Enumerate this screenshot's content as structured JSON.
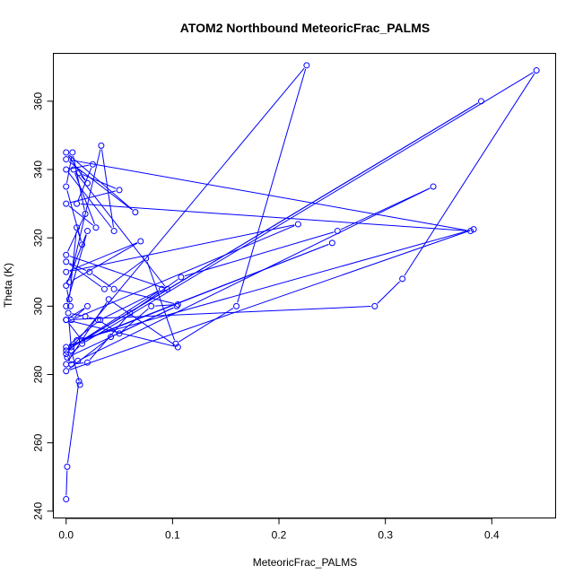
{
  "chart_data": {
    "type": "line",
    "title": "ATOM2 Northbound MeteoricFrac_PALMS",
    "xlabel": "MeteoricFrac_PALMS",
    "ylabel": "Theta (K)",
    "xlim": [
      -0.012,
      0.46
    ],
    "ylim": [
      238,
      374
    ],
    "x_ticks": [
      0.0,
      0.1,
      0.2,
      0.3,
      0.4
    ],
    "x_tick_labels": [
      "0.0",
      "0.1",
      "0.2",
      "0.3",
      "0.4"
    ],
    "y_ticks": [
      240,
      260,
      280,
      300,
      320,
      340,
      360
    ],
    "y_tick_labels": [
      "240",
      "260",
      "280",
      "300",
      "320",
      "340",
      "360"
    ],
    "grid": false,
    "legend": "none",
    "series_color": "#0000ff",
    "marker": "open-circle",
    "series": [
      {
        "x": [
          0.0,
          0.001,
          0.012,
          0.013,
          0.005,
          0.002,
          0.018,
          0.03,
          0.05,
          0.08,
          0.105,
          0.045,
          0.022,
          0.0,
          0.036,
          0.075,
          0.103,
          0.16,
          0.226,
          0.0,
          0.005,
          0.02,
          0.06,
          0.108,
          0.255,
          0.345,
          0.011,
          0.0,
          0.04,
          0.105,
          0.0,
          0.015,
          0.25,
          0.0,
          0.032,
          0.09,
          0.005,
          0.39,
          0.0,
          0.01,
          0.383,
          0.0,
          0.042,
          0.104,
          0.001,
          0.015,
          0.442,
          0.316,
          0.29,
          0.0,
          0.02,
          0.005,
          0.218,
          0.0,
          0.07,
          0.003,
          0.033,
          0.045,
          0.0,
          0.025,
          0.01,
          0.38,
          0.0,
          0.065,
          0.0,
          0.02,
          0.012,
          0.05,
          0.0,
          0.028,
          0.007,
          0.095,
          0.0,
          0.018,
          0.006,
          0.0,
          0.015,
          0.01,
          0.003,
          0.0,
          0.02,
          0.0,
          0.004
        ],
        "y": [
          243.5,
          253,
          278,
          277,
          287,
          298,
          297,
          296,
          292,
          300,
          300.5,
          305,
          310,
          313,
          305,
          314,
          289,
          300,
          370.5,
          286,
          283,
          283.5,
          298,
          308.5,
          322,
          335,
          284,
          283,
          302,
          288,
          296,
          290,
          318.5,
          288,
          296,
          305,
          288,
          360,
          287,
          290,
          322.5,
          281,
          291,
          300,
          285,
          289,
          369,
          308,
          300,
          296,
          300,
          296,
          324,
          310,
          319,
          307,
          347,
          322,
          340,
          341.5,
          330,
          322,
          343,
          327.5,
          345,
          336,
          339,
          334,
          330,
          323,
          340,
          305,
          315,
          327,
          345,
          335,
          318,
          323,
          302,
          300,
          322,
          306,
          300
        ]
      }
    ]
  }
}
